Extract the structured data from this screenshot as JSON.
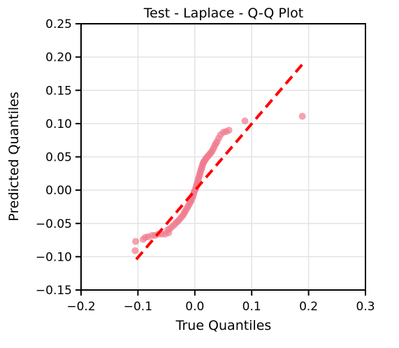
{
  "chart_data": {
    "type": "scatter",
    "title": "Test - Laplace - Q-Q Plot",
    "xlabel": "True Quantiles",
    "ylabel": "Predicted Quantiles",
    "xlim": [
      -0.2,
      0.3
    ],
    "ylim": [
      -0.15,
      0.25
    ],
    "xticks": [
      -0.2,
      -0.1,
      0.0,
      0.1,
      0.2,
      0.3
    ],
    "xtick_labels": [
      "−0.2",
      "−0.1",
      "0.0",
      "0.1",
      "0.2",
      "0.3"
    ],
    "yticks": [
      -0.15,
      -0.1,
      -0.05,
      0.0,
      0.05,
      0.1,
      0.15,
      0.2,
      0.25
    ],
    "ytick_labels": [
      "−0.15",
      "−0.10",
      "−0.05",
      "0.00",
      "0.05",
      "0.10",
      "0.15",
      "0.20",
      "0.25"
    ],
    "grid": true,
    "colors": {
      "points": "#f07b8e",
      "reference_line": "#ff0000"
    },
    "reference_line": {
      "x": [
        -0.103,
        0.19
      ],
      "y": [
        -0.104,
        0.19
      ]
    },
    "points": [
      [
        -0.105,
        -0.091
      ],
      [
        -0.104,
        -0.077
      ],
      [
        -0.091,
        -0.074
      ],
      [
        -0.087,
        -0.071
      ],
      [
        -0.082,
        -0.07
      ],
      [
        -0.075,
        -0.068
      ],
      [
        -0.07,
        -0.068
      ],
      [
        -0.064,
        -0.066
      ],
      [
        -0.058,
        -0.066
      ],
      [
        -0.052,
        -0.066
      ],
      [
        -0.046,
        -0.064
      ],
      [
        -0.048,
        -0.06
      ],
      [
        -0.044,
        -0.058
      ],
      [
        -0.04,
        -0.055
      ],
      [
        -0.036,
        -0.052
      ],
      [
        -0.033,
        -0.049
      ],
      [
        -0.03,
        -0.047
      ],
      [
        -0.027,
        -0.044
      ],
      [
        -0.024,
        -0.041
      ],
      [
        -0.021,
        -0.038
      ],
      [
        -0.019,
        -0.035
      ],
      [
        -0.017,
        -0.032
      ],
      [
        -0.015,
        -0.029
      ],
      [
        -0.013,
        -0.026
      ],
      [
        -0.011,
        -0.023
      ],
      [
        -0.009,
        -0.02
      ],
      [
        -0.007,
        -0.017
      ],
      [
        -0.006,
        -0.014
      ],
      [
        -0.004,
        -0.011
      ],
      [
        -0.003,
        -0.008
      ],
      [
        -0.002,
        -0.005
      ],
      [
        -0.001,
        -0.002
      ],
      [
        0.001,
        0.001
      ],
      [
        0.002,
        0.004
      ],
      [
        0.003,
        0.007
      ],
      [
        0.004,
        0.01
      ],
      [
        0.005,
        0.013
      ],
      [
        0.006,
        0.016
      ],
      [
        0.007,
        0.019
      ],
      [
        0.008,
        0.022
      ],
      [
        0.009,
        0.025
      ],
      [
        0.01,
        0.028
      ],
      [
        0.011,
        0.031
      ],
      [
        0.012,
        0.033
      ],
      [
        0.013,
        0.036
      ],
      [
        0.014,
        0.039
      ],
      [
        0.015,
        0.041
      ],
      [
        0.016,
        0.043
      ],
      [
        0.018,
        0.045
      ],
      [
        0.019,
        0.047
      ],
      [
        0.021,
        0.049
      ],
      [
        0.023,
        0.051
      ],
      [
        0.025,
        0.053
      ],
      [
        0.027,
        0.055
      ],
      [
        0.029,
        0.057
      ],
      [
        0.031,
        0.06
      ],
      [
        0.033,
        0.063
      ],
      [
        0.035,
        0.067
      ],
      [
        0.037,
        0.07
      ],
      [
        0.039,
        0.073
      ],
      [
        0.042,
        0.078
      ],
      [
        0.045,
        0.083
      ],
      [
        0.05,
        0.087
      ],
      [
        0.055,
        0.088
      ],
      [
        0.06,
        0.09
      ],
      [
        0.088,
        0.104
      ],
      [
        0.189,
        0.111
      ]
    ]
  }
}
